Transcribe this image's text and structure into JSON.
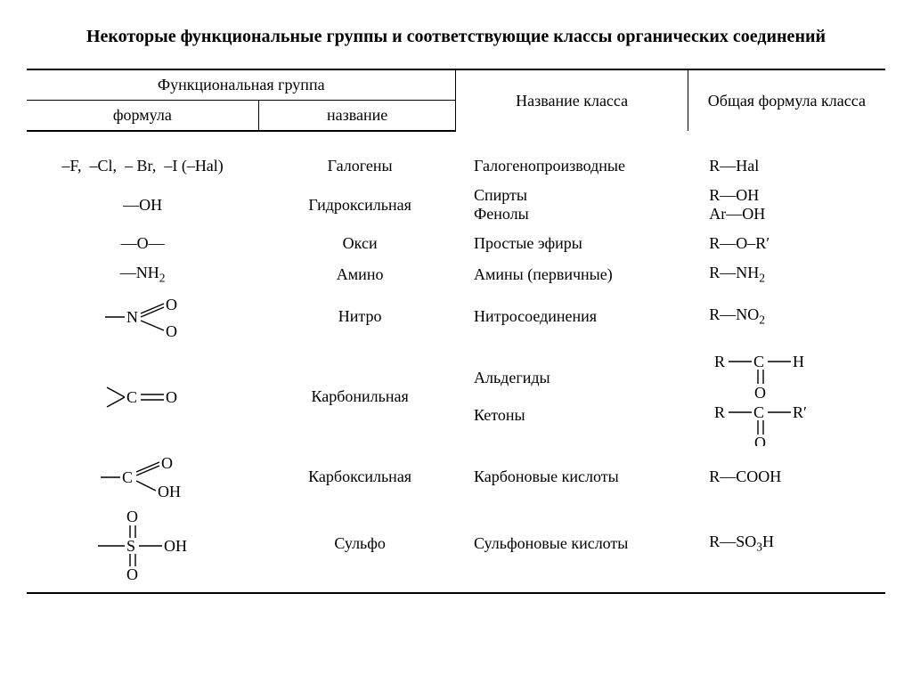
{
  "title": "Некоторые функциональные группы и соответствующие классы органических соединений",
  "headers": {
    "group_span": "Функциональная группа",
    "formula": "формула",
    "name": "название",
    "class_name": "Название класса",
    "general_formula": "Общая формула класса"
  },
  "rows": [
    {
      "formula_html": "–F,&nbsp;&nbsp;–Cl,&nbsp;&nbsp;– Br,&nbsp;&nbsp;–I&nbsp;(–Hal)",
      "name": "Галогены",
      "class_html": "Галогенопроизводные",
      "general_html": "R—Hal"
    },
    {
      "formula_html": "—OH",
      "name": "Гидроксильная",
      "class_html": "Спирты<br>Фенолы",
      "general_html": "R—OH<br>Ar—OH"
    },
    {
      "formula_html": "—O—",
      "name": "Окси",
      "class_html": "Простые эфиры",
      "general_html": "R—O–R′"
    },
    {
      "formula_html": "—NH<span class='sub'>2</span>",
      "name": "Амино",
      "class_html": "Амины (первичные)",
      "general_html": "R—NH<span class='sub'>2</span>"
    },
    {
      "formula_svg": "nitro",
      "name": "Нитро",
      "class_html": "Нитросоединения",
      "general_html": "R—NO<span class='sub'>2</span>"
    },
    {
      "formula_svg": "carbonyl",
      "name": "Карбонильная",
      "class_html": "Альдегиды<br><br>Кетоны",
      "general_svg": "aldket"
    },
    {
      "formula_svg": "carboxyl",
      "name": "Карбоксильная",
      "class_html": "Карбоновые кислоты",
      "general_html": "R—COOH"
    },
    {
      "formula_svg": "sulfo",
      "name": "Сульфо",
      "class_html": "Сульфоновые кислоты",
      "general_html": "R—SO<span class='sub'>3</span>H"
    }
  ],
  "svg": {
    "font": "18px Times New Roman",
    "stroke": "#000",
    "stroke_width": 1.4
  }
}
